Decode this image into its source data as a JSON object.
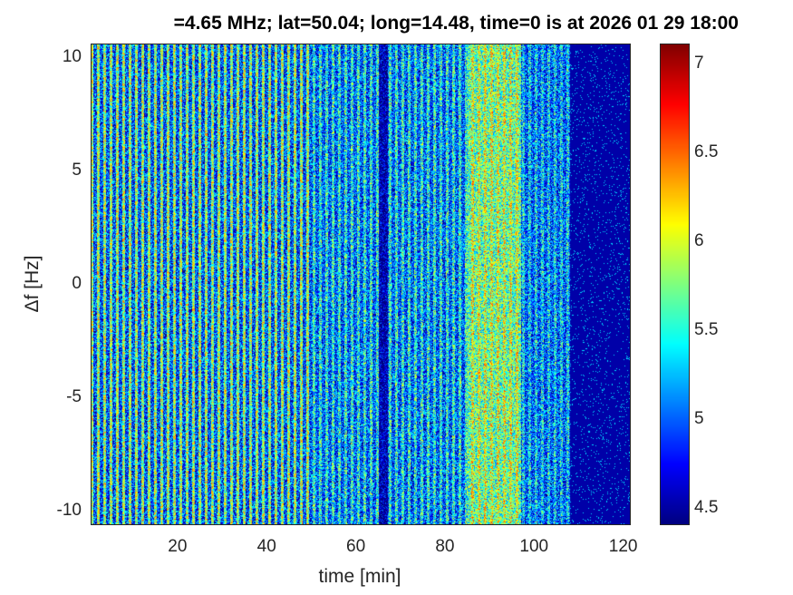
{
  "chart_data": {
    "type": "heatmap",
    "title": "=4.65 MHz;  lat=50.04; long=14.48, time=0 is at 2026 01 29 18:00",
    "xlabel": "time [min]",
    "ylabel": "Δf [Hz]",
    "xlim": [
      0.5,
      121.5
    ],
    "ylim": [
      -10.6,
      10.6
    ],
    "xticks": [
      "20",
      "40",
      "60",
      "80",
      "100",
      "120"
    ],
    "xtick_values": [
      20,
      40,
      60,
      80,
      100,
      120
    ],
    "yticks": [
      "10",
      "5",
      "0",
      "-5",
      "-10"
    ],
    "ytick_values": [
      10,
      5,
      0,
      -5,
      -10
    ],
    "colorbar": {
      "ticks": [
        "7",
        "6.5",
        "6",
        "5.5",
        "5",
        "4.5"
      ],
      "tick_values": [
        7,
        6.5,
        6,
        5.5,
        5,
        4.5
      ],
      "clim": [
        4.41,
        7.11
      ],
      "colormap": "jet"
    },
    "colors": {
      "background": "#00008f"
    }
  }
}
